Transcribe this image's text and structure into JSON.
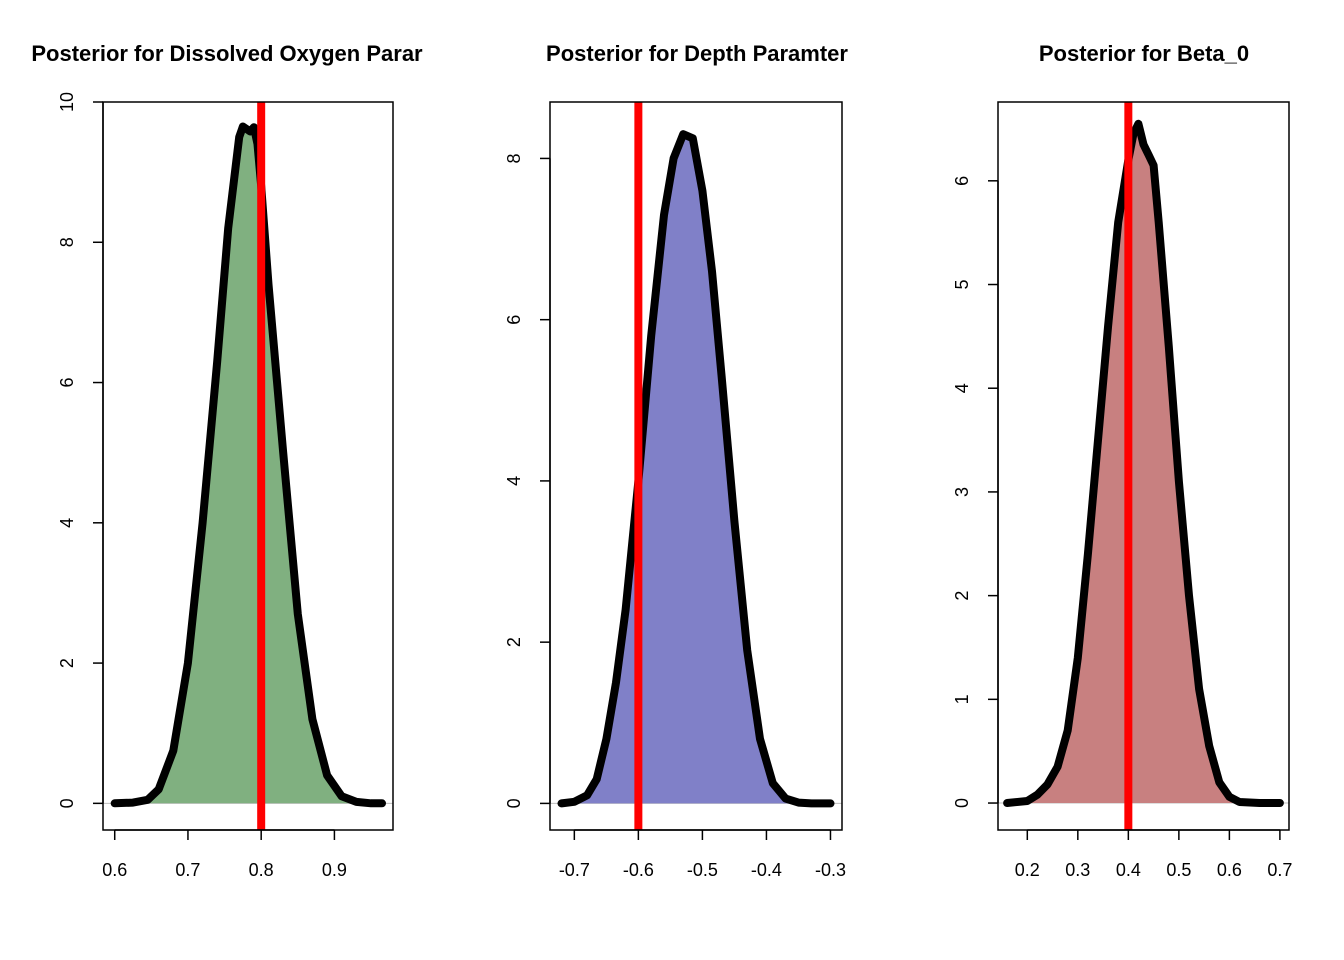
{
  "chart_data": [
    {
      "type": "area",
      "title": "Posterior for Dissolved Oxygen Parar",
      "xlabel": "",
      "ylabel": "",
      "xlim": [
        0.584,
        0.98
      ],
      "ylim": [
        -0.38,
        10.0
      ],
      "xticks": [
        0.6,
        0.7,
        0.8,
        0.9
      ],
      "xtick_labels": [
        "0.6",
        "0.7",
        "0.8",
        "0.9"
      ],
      "yticks": [
        0,
        2,
        4,
        6,
        8,
        10
      ],
      "ytick_labels": [
        "0",
        "2",
        "4",
        "6",
        "8",
        "10"
      ],
      "fill_color": "#80b080",
      "line_color": "#000000",
      "vline": {
        "x": 0.8,
        "color": "#ff0000"
      },
      "grid": false,
      "density": {
        "x": [
          0.6,
          0.625,
          0.645,
          0.66,
          0.68,
          0.7,
          0.72,
          0.74,
          0.755,
          0.77,
          0.775,
          0.785,
          0.79,
          0.795,
          0.8,
          0.81,
          0.83,
          0.85,
          0.87,
          0.89,
          0.91,
          0.93,
          0.95,
          0.965
        ],
        "y": [
          0.0,
          0.01,
          0.05,
          0.2,
          0.75,
          2.0,
          4.0,
          6.3,
          8.2,
          9.5,
          9.65,
          9.58,
          9.64,
          9.4,
          8.8,
          7.4,
          5.0,
          2.7,
          1.2,
          0.4,
          0.1,
          0.02,
          0.0,
          0.0
        ]
      }
    },
    {
      "type": "area",
      "title": "Posterior for Depth Paramter",
      "xlabel": "",
      "ylabel": "",
      "xlim": [
        -0.738,
        -0.282
      ],
      "ylim": [
        -0.33,
        8.7
      ],
      "xticks": [
        -0.7,
        -0.6,
        -0.5,
        -0.4,
        -0.3
      ],
      "xtick_labels": [
        "-0.7",
        "-0.6",
        "-0.5",
        "-0.4",
        "-0.3"
      ],
      "yticks": [
        0,
        2,
        4,
        6,
        8
      ],
      "ytick_labels": [
        "0",
        "2",
        "4",
        "6",
        "8"
      ],
      "fill_color": "#8080c8",
      "line_color": "#000000",
      "vline": {
        "x": -0.6,
        "color": "#ff0000"
      },
      "grid": false,
      "density": {
        "x": [
          -0.72,
          -0.7,
          -0.68,
          -0.665,
          -0.65,
          -0.635,
          -0.62,
          -0.6,
          -0.58,
          -0.56,
          -0.545,
          -0.53,
          -0.515,
          -0.5,
          -0.485,
          -0.47,
          -0.45,
          -0.43,
          -0.41,
          -0.39,
          -0.37,
          -0.35,
          -0.33,
          -0.3
        ],
        "y": [
          0.0,
          0.02,
          0.1,
          0.3,
          0.8,
          1.5,
          2.4,
          4.0,
          5.8,
          7.3,
          8.0,
          8.3,
          8.25,
          7.6,
          6.6,
          5.3,
          3.5,
          1.9,
          0.8,
          0.25,
          0.06,
          0.01,
          0.0,
          0.0
        ]
      }
    },
    {
      "type": "area",
      "title": "Posterior for Beta_0",
      "xlabel": "",
      "ylabel": "",
      "xlim": [
        0.142,
        0.718
      ],
      "ylim": [
        -0.26,
        6.76
      ],
      "xticks": [
        0.2,
        0.3,
        0.4,
        0.5,
        0.6,
        0.7
      ],
      "xtick_labels": [
        "0.2",
        "0.3",
        "0.4",
        "0.5",
        "0.6",
        "0.7"
      ],
      "yticks": [
        0,
        1,
        2,
        3,
        4,
        5,
        6
      ],
      "ytick_labels": [
        "0",
        "1",
        "2",
        "3",
        "4",
        "5",
        "6"
      ],
      "fill_color": "#c88080",
      "line_color": "#000000",
      "vline": {
        "x": 0.4,
        "color": "#ff0000"
      },
      "grid": false,
      "density": {
        "x": [
          0.16,
          0.2,
          0.22,
          0.24,
          0.26,
          0.28,
          0.3,
          0.32,
          0.34,
          0.36,
          0.38,
          0.4,
          0.41,
          0.42,
          0.43,
          0.44,
          0.45,
          0.46,
          0.48,
          0.5,
          0.52,
          0.54,
          0.56,
          0.58,
          0.6,
          0.62,
          0.66,
          0.7
        ],
        "y": [
          0.0,
          0.02,
          0.08,
          0.18,
          0.35,
          0.7,
          1.4,
          2.4,
          3.5,
          4.6,
          5.6,
          6.2,
          6.45,
          6.55,
          6.35,
          6.25,
          6.15,
          5.6,
          4.4,
          3.1,
          2.0,
          1.1,
          0.55,
          0.2,
          0.06,
          0.01,
          0.0,
          0.0
        ]
      }
    }
  ]
}
